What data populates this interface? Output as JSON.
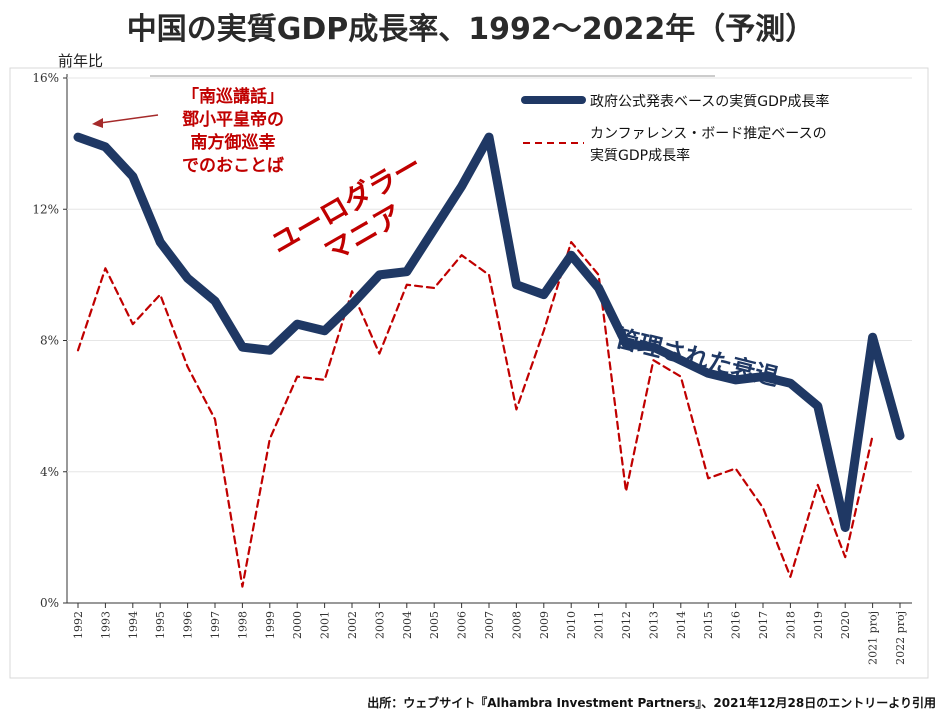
{
  "title": "中国の実質GDP成長率、1992〜2022年（予測）",
  "unit_label": "前年比",
  "source": "出所：ウェブサイト『Alhambra Investment Partners』、2021年12月28日のエントリーより引用",
  "annotations": {
    "nanxun_lines": [
      "「南巡講話」",
      "鄧小平皇帝の",
      "南方御巡幸",
      "でのおことば"
    ],
    "euro_lines": [
      "ユーロダラー",
      "マニア"
    ],
    "managed_decline": "管理された衰退"
  },
  "colors": {
    "official": "#1f3864",
    "conference_board": "#c00000",
    "annotation_red": "#c00000"
  },
  "chart_data": {
    "type": "line",
    "categories": [
      "1992",
      "1993",
      "1994",
      "1995",
      "1996",
      "1997",
      "1998",
      "1999",
      "2000",
      "2001",
      "2002",
      "2003",
      "2004",
      "2005",
      "2006",
      "2007",
      "2008",
      "2009",
      "2010",
      "2011",
      "2012",
      "2013",
      "2014",
      "2015",
      "2016",
      "2017",
      "2018",
      "2019",
      "2020",
      "2021 proj",
      "2022 proj"
    ],
    "series": [
      {
        "name": "政府公式発表ベースの実質GDP成長率",
        "values": [
          14.2,
          13.9,
          13.0,
          11.0,
          9.9,
          9.2,
          7.8,
          7.7,
          8.5,
          8.3,
          9.1,
          10.0,
          10.1,
          11.4,
          12.7,
          14.2,
          9.7,
          9.4,
          10.6,
          9.6,
          7.9,
          7.8,
          7.4,
          7.0,
          6.8,
          6.9,
          6.7,
          6.0,
          2.3,
          8.1,
          5.1
        ]
      },
      {
        "name": "カンファレンス・ボード推定ベースの実質GDP成長率",
        "values": [
          7.7,
          10.2,
          8.5,
          9.4,
          7.2,
          5.6,
          0.5,
          5.0,
          6.9,
          6.8,
          9.5,
          7.6,
          9.7,
          9.6,
          10.6,
          10.0,
          5.9,
          8.3,
          11.0,
          10.0,
          3.4,
          7.4,
          6.9,
          3.8,
          4.1,
          2.9,
          0.8,
          3.6,
          1.4,
          5.1,
          null
        ]
      }
    ],
    "yticks": [
      "0%",
      "4%",
      "8%",
      "12%",
      "16%"
    ],
    "ylim": [
      0,
      16
    ],
    "grid": true,
    "legend_position": "top-right"
  }
}
